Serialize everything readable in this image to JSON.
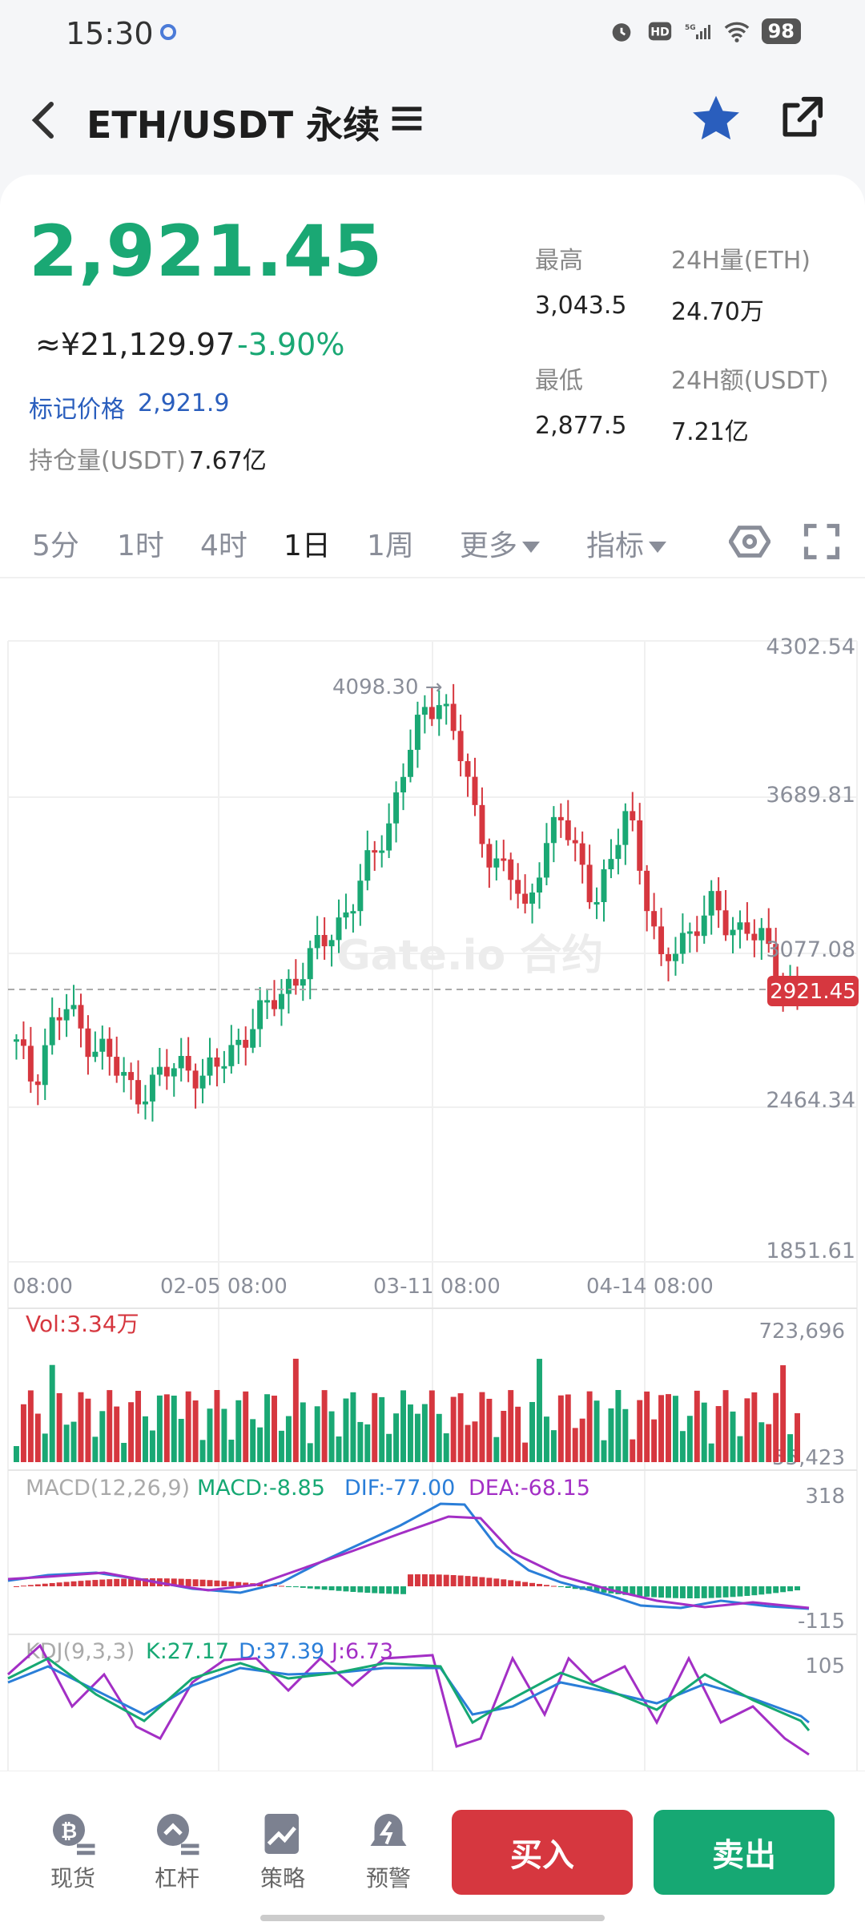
{
  "status": {
    "time": "15:30",
    "signal": "5G",
    "battery": "98"
  },
  "nav": {
    "title": "ETH/USDT 永续"
  },
  "ticker": {
    "last_price": "2,921.45",
    "cny_price": "≈¥21,129.97",
    "change": "-3.90%",
    "mark_label": "标记价格",
    "mark_price": "2,921.9",
    "oi_label": "持仓量(USDT)",
    "oi_value": "7.67亿",
    "high_label": "最高",
    "high_value": "3,043.5",
    "low_label": "最低",
    "low_value": "2,877.5",
    "vol_label": "24H量(ETH)",
    "vol_value": "24.70万",
    "amt_label": "24H额(USDT)",
    "amt_value": "7.21亿"
  },
  "tabs": [
    "5分",
    "1时",
    "4时",
    "1日",
    "1周",
    "更多",
    "指标"
  ],
  "active_tab": "1日",
  "chart_data": {
    "type": "candlestick",
    "watermark": "Gate.io 合约",
    "price_axis": [
      "4302.54",
      "3689.81",
      "3077.08",
      "2464.34",
      "1851.61"
    ],
    "ylim": [
      1851.61,
      4302.54
    ],
    "time_axis": [
      "08:00",
      "02-05 08:00",
      "03-11 08:00",
      "04-14 08:00"
    ],
    "high_marker": "4098.30 →",
    "current_price_tag": "2921.45",
    "closes": [
      2700,
      2560,
      2780,
      2850,
      2740,
      2700,
      2590,
      2520,
      2560,
      2600,
      2640,
      2580,
      2620,
      2720,
      2800,
      2860,
      2950,
      3020,
      3100,
      3200,
      3300,
      3450,
      3600,
      3850,
      4000,
      4098,
      3900,
      3600,
      3450,
      3400,
      3200,
      3500,
      3600,
      3450,
      3300,
      3400,
      3650,
      3350,
      3000,
      3100,
      3200,
      3250,
      3150,
      3200,
      3100,
      2950,
      2921
    ],
    "volume": {
      "label": "Vol:3.34万",
      "max": "723,696",
      "min": "55,423"
    },
    "macd": {
      "label": "MACD(12,26,9)",
      "macd": "MACD:-8.85",
      "dif": "DIF:-77.00",
      "dea": "DEA:-68.15",
      "max": "318",
      "min": "-115"
    },
    "kdj": {
      "label": "KDJ(9,3,3)",
      "k": "K:27.17",
      "d": "D:37.39",
      "j": "J:6.73",
      "max": "105"
    }
  },
  "bottom_nav": [
    "现货",
    "杠杆",
    "策略",
    "预警"
  ],
  "buy_label": "买入",
  "sell_label": "卖出",
  "colors": {
    "up": "#1aa874",
    "down": "#d6373f",
    "accent": "#2a5ebd"
  }
}
